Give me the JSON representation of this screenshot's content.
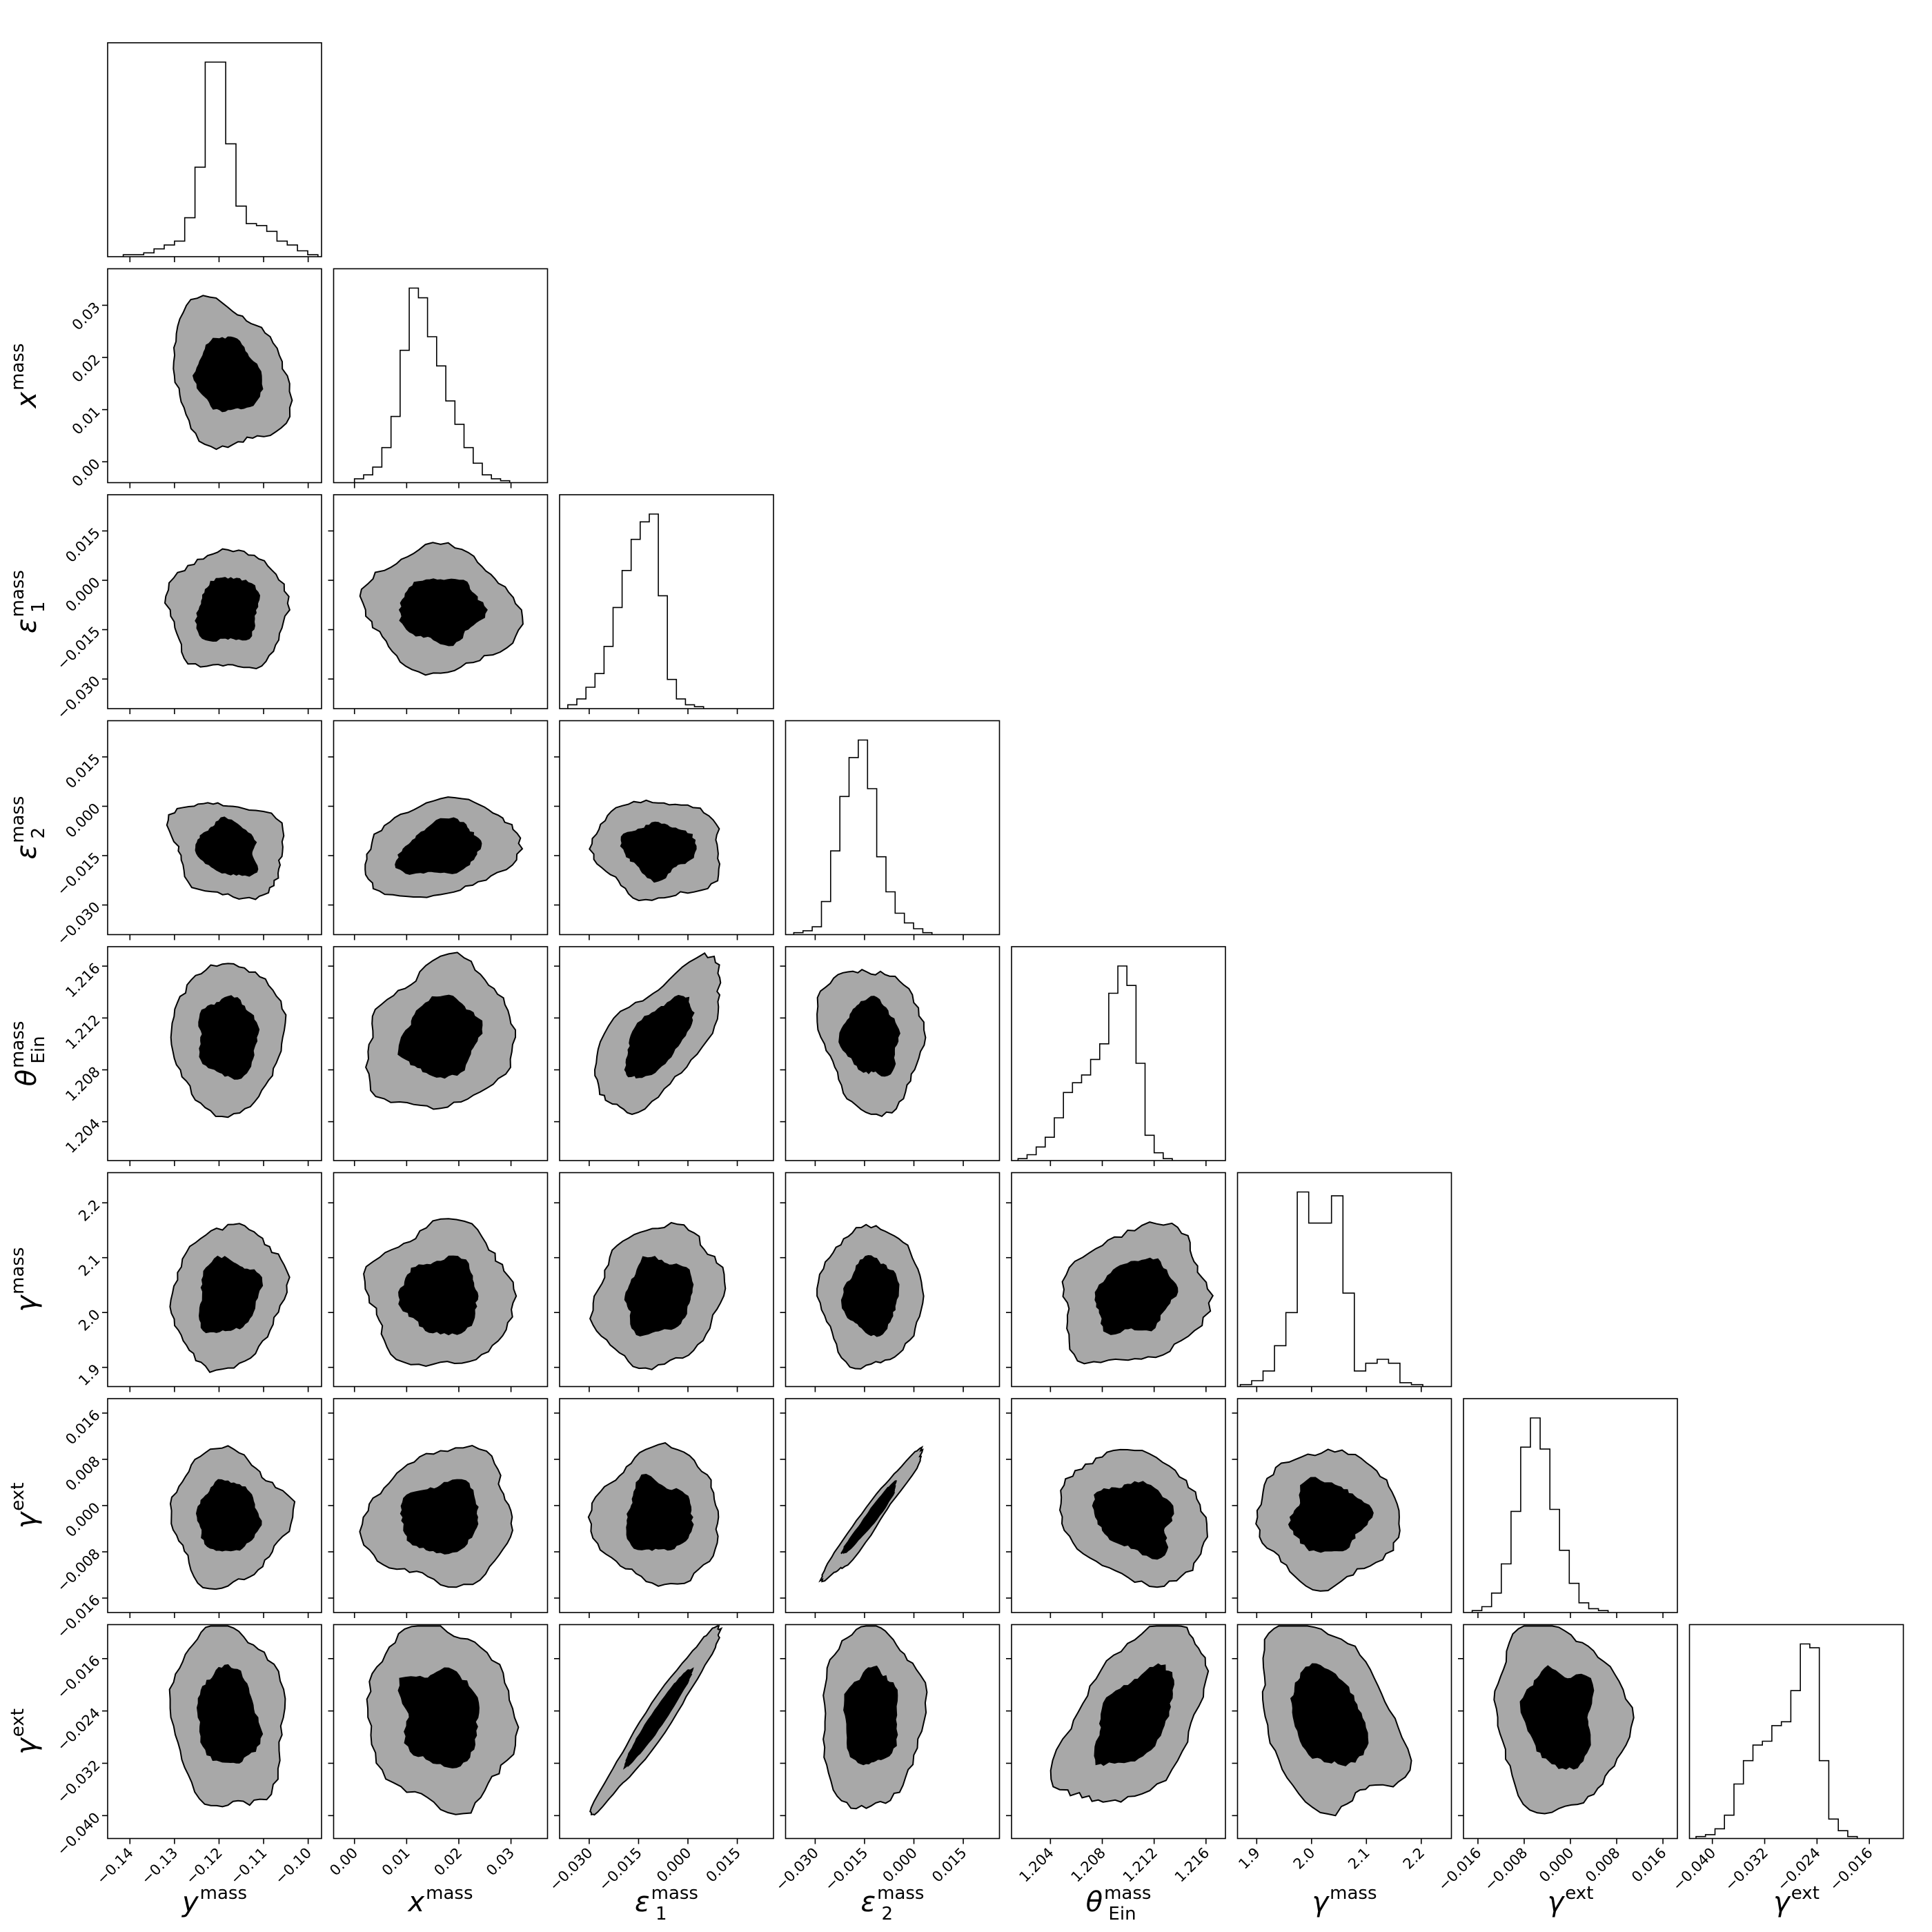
{
  "chart_data": {
    "type": "corner",
    "description_of_contours": "68% (black) and 95% (grey) credible regions",
    "parameters": [
      {
        "name": "y^mass",
        "label_main": "y",
        "label_sup": "mass",
        "label_sub": "",
        "range": [
          -0.145,
          -0.097
        ],
        "ticks": [
          -0.14,
          -0.13,
          -0.12,
          -0.11,
          -0.1
        ],
        "tick_labels": [
          "−0.14",
          "−0.13",
          "−0.12",
          "−0.11",
          "−0.10"
        ],
        "mean": -0.118,
        "sd": 0.005
      },
      {
        "name": "x^mass",
        "label_main": "x",
        "label_sup": "mass",
        "label_sub": "",
        "range": [
          -0.004,
          0.037
        ],
        "ticks": [
          0.0,
          0.01,
          0.02,
          0.03
        ],
        "tick_labels": [
          "0.00",
          "0.01",
          "0.02",
          "0.03"
        ],
        "mean": 0.0165,
        "sd": 0.0055
      },
      {
        "name": "epsilon_1^mass",
        "label_main": "ε",
        "label_sup": "mass",
        "label_sub": "1",
        "range": [
          -0.039,
          0.026
        ],
        "ticks": [
          -0.03,
          -0.015,
          0.0,
          0.015
        ],
        "tick_labels": [
          "−0.030",
          "−0.015",
          "0.000",
          "0.015"
        ],
        "mean": -0.009,
        "sd": 0.0075
      },
      {
        "name": "epsilon_2^mass",
        "label_main": "ε",
        "label_sup": "mass",
        "label_sub": "2",
        "range": [
          -0.039,
          0.026
        ],
        "ticks": [
          -0.03,
          -0.015,
          0.0,
          0.015
        ],
        "tick_labels": [
          "−0.030",
          "−0.015",
          "0.000",
          "0.015"
        ],
        "mean": -0.013,
        "sd": 0.006
      },
      {
        "name": "theta_Ein^mass",
        "label_main": "θ",
        "label_sup": "mass",
        "label_sub": "Ein",
        "range": [
          1.201,
          1.2175
        ],
        "ticks": [
          1.204,
          1.208,
          1.212,
          1.216
        ],
        "tick_labels": [
          "1.204",
          "1.208",
          "1.212",
          "1.216"
        ],
        "mean": 1.2105,
        "sd": 0.0022
      },
      {
        "name": "gamma^mass",
        "label_main": "γ",
        "label_sup": "mass",
        "label_sub": "",
        "range": [
          1.865,
          2.255
        ],
        "ticks": [
          1.9,
          2.0,
          2.1,
          2.2
        ],
        "tick_labels": [
          "1.9",
          "2.0",
          "2.1",
          "2.2"
        ],
        "mean": 2.03,
        "sd": 0.05
      },
      {
        "name": "gamma^ext_1",
        "label_main": "γ",
        "label_sup": "ext",
        "label_sub": "",
        "range": [
          -0.0185,
          0.0185
        ],
        "ticks": [
          -0.016,
          -0.008,
          0.0,
          0.008,
          0.016
        ],
        "tick_labels": [
          "−0.016",
          "−0.008",
          "0.000",
          "0.008",
          "0.016"
        ],
        "mean": -0.002,
        "sd": 0.0045
      },
      {
        "name": "gamma^ext_2",
        "label_main": "γ",
        "label_sup": "ext",
        "label_sub": "",
        "range": [
          -0.0435,
          -0.0108
        ],
        "ticks": [
          -0.04,
          -0.032,
          -0.024,
          -0.016
        ],
        "tick_labels": [
          "−0.040",
          "−0.032",
          "−0.024",
          "−0.016"
        ],
        "mean": -0.025,
        "sd": 0.0055
      }
    ],
    "histograms": [
      {
        "param": 0,
        "bin_edges_start": -0.1415,
        "bin_width": 0.0023,
        "counts": [
          1,
          1,
          2,
          4,
          6,
          8,
          20,
          46,
          100,
          100,
          58,
          26,
          17,
          16,
          13,
          8,
          6,
          3,
          1
        ]
      },
      {
        "param": 1,
        "bin_edges_start": 0.0,
        "bin_width": 0.00175,
        "counts": [
          2,
          4,
          8,
          18,
          34,
          68,
          100,
          95,
          75,
          60,
          42,
          30,
          18,
          10,
          4,
          2,
          1
        ]
      },
      {
        "param": 2,
        "bin_edges_start": -0.0365,
        "bin_width": 0.00275,
        "counts": [
          2,
          5,
          11,
          18,
          32,
          52,
          71,
          87,
          96,
          100,
          58,
          15,
          5,
          2,
          1
        ]
      },
      {
        "param": 3,
        "bin_edges_start": -0.0365,
        "bin_width": 0.0028,
        "counts": [
          1,
          2,
          4,
          17,
          43,
          71,
          91,
          100,
          75,
          40,
          22,
          11,
          6,
          3,
          1
        ]
      },
      {
        "param": 4,
        "bin_edges_start": 1.2015,
        "bin_width": 0.0007,
        "counts": [
          1,
          3,
          7,
          12,
          22,
          35,
          40,
          44,
          52,
          60,
          86,
          100,
          90,
          50,
          13,
          4,
          1
        ]
      },
      {
        "param": 5,
        "bin_edges_start": 1.87,
        "bin_width": 0.0208,
        "counts": [
          1,
          3,
          8,
          21,
          38,
          100,
          84,
          84,
          98,
          48,
          8,
          12,
          14,
          12,
          2,
          1
        ]
      },
      {
        "param": 6,
        "bin_edges_start": -0.017,
        "bin_width": 0.00168,
        "counts": [
          1,
          3,
          10,
          25,
          52,
          85,
          100,
          84,
          53,
          32,
          15,
          5,
          2,
          1
        ]
      },
      {
        "param": 7,
        "bin_edges_start": -0.0425,
        "bin_width": 0.00145,
        "counts": [
          1,
          2,
          5,
          12,
          28,
          40,
          48,
          50,
          58,
          60,
          76,
          100,
          98,
          40,
          10,
          4,
          1
        ]
      }
    ],
    "correlations": {
      "1-0": -0.1,
      "2-0": 0.0,
      "2-1": 0.0,
      "3-0": -0.25,
      "3-1": 0.2,
      "3-2": 0.0,
      "4-0": 0.0,
      "4-1": 0.1,
      "4-2": 0.6,
      "4-3": -0.1,
      "5-0": 0.15,
      "5-1": 0.0,
      "5-2": 0.1,
      "5-3": 0.0,
      "5-4": 0.2,
      "6-0": 0.0,
      "6-1": 0.1,
      "6-2": 0.0,
      "6-3": 0.97,
      "6-4": -0.2,
      "6-5": 0.0,
      "7-0": -0.1,
      "7-1": -0.1,
      "7-2": 0.97,
      "7-3": 0.05,
      "7-4": 0.5,
      "7-5": -0.3,
      "7-6": -0.1
    },
    "level_scales": {
      "inner": 1.35,
      "outer": 2.55
    },
    "colors": {
      "inner": "#000000",
      "outer": "#a8a8a8",
      "line": "#000000",
      "frame": "#000000"
    }
  }
}
